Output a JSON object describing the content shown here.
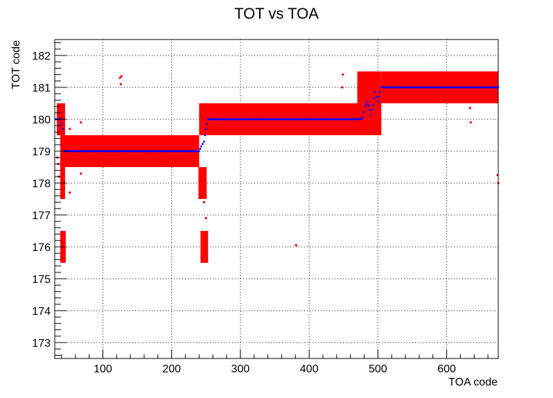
{
  "chart_data": {
    "type": "scatter",
    "title": "TOT vs TOA",
    "xlabel": "TOA code",
    "ylabel": "TOT code",
    "xlim": [
      30,
      675
    ],
    "ylim": [
      172.5,
      182.5
    ],
    "grid": true,
    "x_ticks": [
      100,
      200,
      300,
      400,
      500,
      600
    ],
    "y_ticks": [
      173,
      174,
      175,
      176,
      177,
      178,
      179,
      180,
      181,
      182
    ],
    "colors": {
      "raw": "#ff0000",
      "mean": "#0000ff"
    },
    "series": [
      {
        "kind": "dense-bands",
        "color": "#ff0000",
        "regions": [
          {
            "x": [
              33,
              45
            ],
            "y": [
              179.5,
              180.5
            ]
          },
          {
            "x": [
              38,
              240
            ],
            "y": [
              178.5,
              179.5
            ]
          },
          {
            "x": [
              38,
              45
            ],
            "y": [
              177.5,
              178.5
            ]
          },
          {
            "x": [
              239,
              251
            ],
            "y": [
              177.5,
              178.5
            ]
          },
          {
            "x": [
              240,
              475
            ],
            "y": [
              179.5,
              180.5
            ]
          },
          {
            "x": [
              470,
              505
            ],
            "y": [
              179.5,
              181.5
            ]
          },
          {
            "x": [
              505,
              675
            ],
            "y": [
              180.5,
              181.5
            ]
          },
          {
            "x": [
              38,
              46
            ],
            "y": [
              175.5,
              176.5
            ]
          },
          {
            "x": [
              242,
              253
            ],
            "y": [
              175.5,
              176.5
            ]
          }
        ],
        "scattered_points": [
          [
            125,
            181.3
          ],
          [
            126,
            181.1
          ],
          [
            127,
            181.35
          ],
          [
            68,
            179.9
          ],
          [
            68,
            178.3
          ],
          [
            52,
            179.7
          ],
          [
            52,
            177.7
          ],
          [
            381,
            176.05
          ],
          [
            634,
            180.35
          ],
          [
            635,
            179.9
          ],
          [
            674,
            178.25
          ],
          [
            675,
            178.0
          ],
          [
            448,
            181.0
          ],
          [
            449,
            181.4
          ],
          [
            34,
            178.8
          ],
          [
            35,
            178.6
          ],
          [
            36,
            178.2
          ],
          [
            247,
            177.4
          ],
          [
            250,
            176.9
          ]
        ]
      },
      {
        "kind": "mean",
        "color": "#0000ff",
        "points": [
          [
            32,
            180.0
          ],
          [
            38,
            180.0
          ],
          [
            42,
            179.7
          ],
          [
            44,
            179.0
          ],
          [
            240,
            179.0
          ],
          [
            243,
            179.15
          ],
          [
            247,
            179.3
          ],
          [
            250,
            179.7
          ],
          [
            253,
            180.0
          ],
          [
            474,
            180.0
          ],
          [
            478,
            180.05
          ],
          [
            482,
            180.4
          ],
          [
            485,
            180.55
          ],
          [
            488,
            180.3
          ],
          [
            490,
            180.15
          ],
          [
            493,
            180.45
          ],
          [
            496,
            180.85
          ],
          [
            500,
            180.55
          ],
          [
            505,
            181.0
          ],
          [
            675,
            181.0
          ]
        ]
      }
    ]
  }
}
